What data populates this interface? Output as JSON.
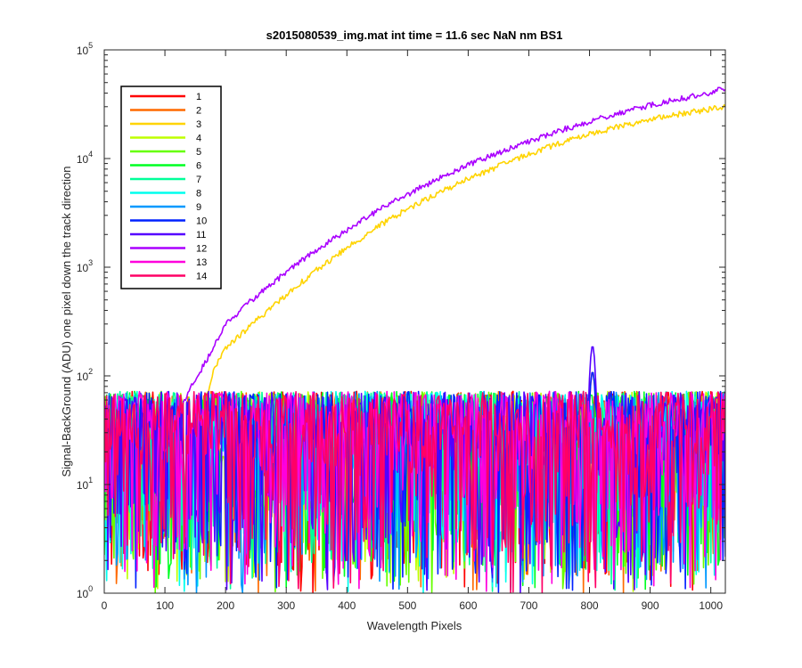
{
  "chart_data": {
    "type": "line",
    "title": "s2015080539_img.mat int time = 11.6 sec  NaN nm BS1",
    "xlabel": "Wavelength Pixels",
    "ylabel": "Signal-BackGround (ADU) one pixel down the track direction",
    "xlim": [
      0,
      1024
    ],
    "ylim": [
      1,
      100000
    ],
    "yscale": "log",
    "grid": false,
    "legend_position": "top-left",
    "x_ticks": [
      "0",
      "100",
      "200",
      "300",
      "400",
      "500",
      "600",
      "700",
      "800",
      "900",
      "1000"
    ],
    "y_ticks": [
      {
        "base": "10",
        "exp": "0"
      },
      {
        "base": "10",
        "exp": "1"
      },
      {
        "base": "10",
        "exp": "2"
      },
      {
        "base": "10",
        "exp": "3"
      },
      {
        "base": "10",
        "exp": "4"
      },
      {
        "base": "10",
        "exp": "5"
      }
    ],
    "series": [
      {
        "name": "1",
        "color": "#ff0000",
        "kind": "noise"
      },
      {
        "name": "2",
        "color": "#ff6a00",
        "kind": "noise"
      },
      {
        "name": "3",
        "color": "#ffd400",
        "kind": "rising",
        "points": [
          [
            160,
            30
          ],
          [
            170,
            70
          ],
          [
            180,
            110
          ],
          [
            200,
            180
          ],
          [
            250,
            320
          ],
          [
            300,
            560
          ],
          [
            350,
            940
          ],
          [
            400,
            1500
          ],
          [
            450,
            2350
          ],
          [
            500,
            3450
          ],
          [
            550,
            4800
          ],
          [
            600,
            6500
          ],
          [
            650,
            8500
          ],
          [
            700,
            11000
          ],
          [
            750,
            13800
          ],
          [
            800,
            16800
          ],
          [
            850,
            19800
          ],
          [
            900,
            22800
          ],
          [
            950,
            25800
          ],
          [
            1000,
            28500
          ],
          [
            1024,
            30000
          ]
        ]
      },
      {
        "name": "4",
        "color": "#bfff00",
        "kind": "noise"
      },
      {
        "name": "5",
        "color": "#66ff00",
        "kind": "noise"
      },
      {
        "name": "6",
        "color": "#00ff22",
        "kind": "noise"
      },
      {
        "name": "7",
        "color": "#00ff99",
        "kind": "noise"
      },
      {
        "name": "8",
        "color": "#00ffee",
        "kind": "noise"
      },
      {
        "name": "9",
        "color": "#0099ff",
        "kind": "noise"
      },
      {
        "name": "10",
        "color": "#0022ff",
        "kind": "noise"
      },
      {
        "name": "11",
        "color": "#5500ff",
        "kind": "noise"
      },
      {
        "name": "12",
        "color": "#aa00ff",
        "kind": "rising",
        "points": [
          [
            100,
            20
          ],
          [
            120,
            40
          ],
          [
            140,
            75
          ],
          [
            160,
            115
          ],
          [
            180,
            180
          ],
          [
            200,
            300
          ],
          [
            250,
            540
          ],
          [
            300,
            900
          ],
          [
            350,
            1450
          ],
          [
            400,
            2200
          ],
          [
            450,
            3300
          ],
          [
            500,
            4700
          ],
          [
            550,
            6500
          ],
          [
            600,
            8700
          ],
          [
            650,
            11300
          ],
          [
            700,
            14400
          ],
          [
            750,
            18000
          ],
          [
            800,
            22000
          ],
          [
            850,
            26500
          ],
          [
            900,
            31000
          ],
          [
            950,
            35500
          ],
          [
            1000,
            40500
          ],
          [
            1024,
            45000
          ]
        ]
      },
      {
        "name": "13",
        "color": "#ff00dd",
        "kind": "noise"
      },
      {
        "name": "14",
        "color": "#ff0066",
        "kind": "noise"
      }
    ],
    "peak_near_x": 805,
    "peak_value_approx": 190
  }
}
